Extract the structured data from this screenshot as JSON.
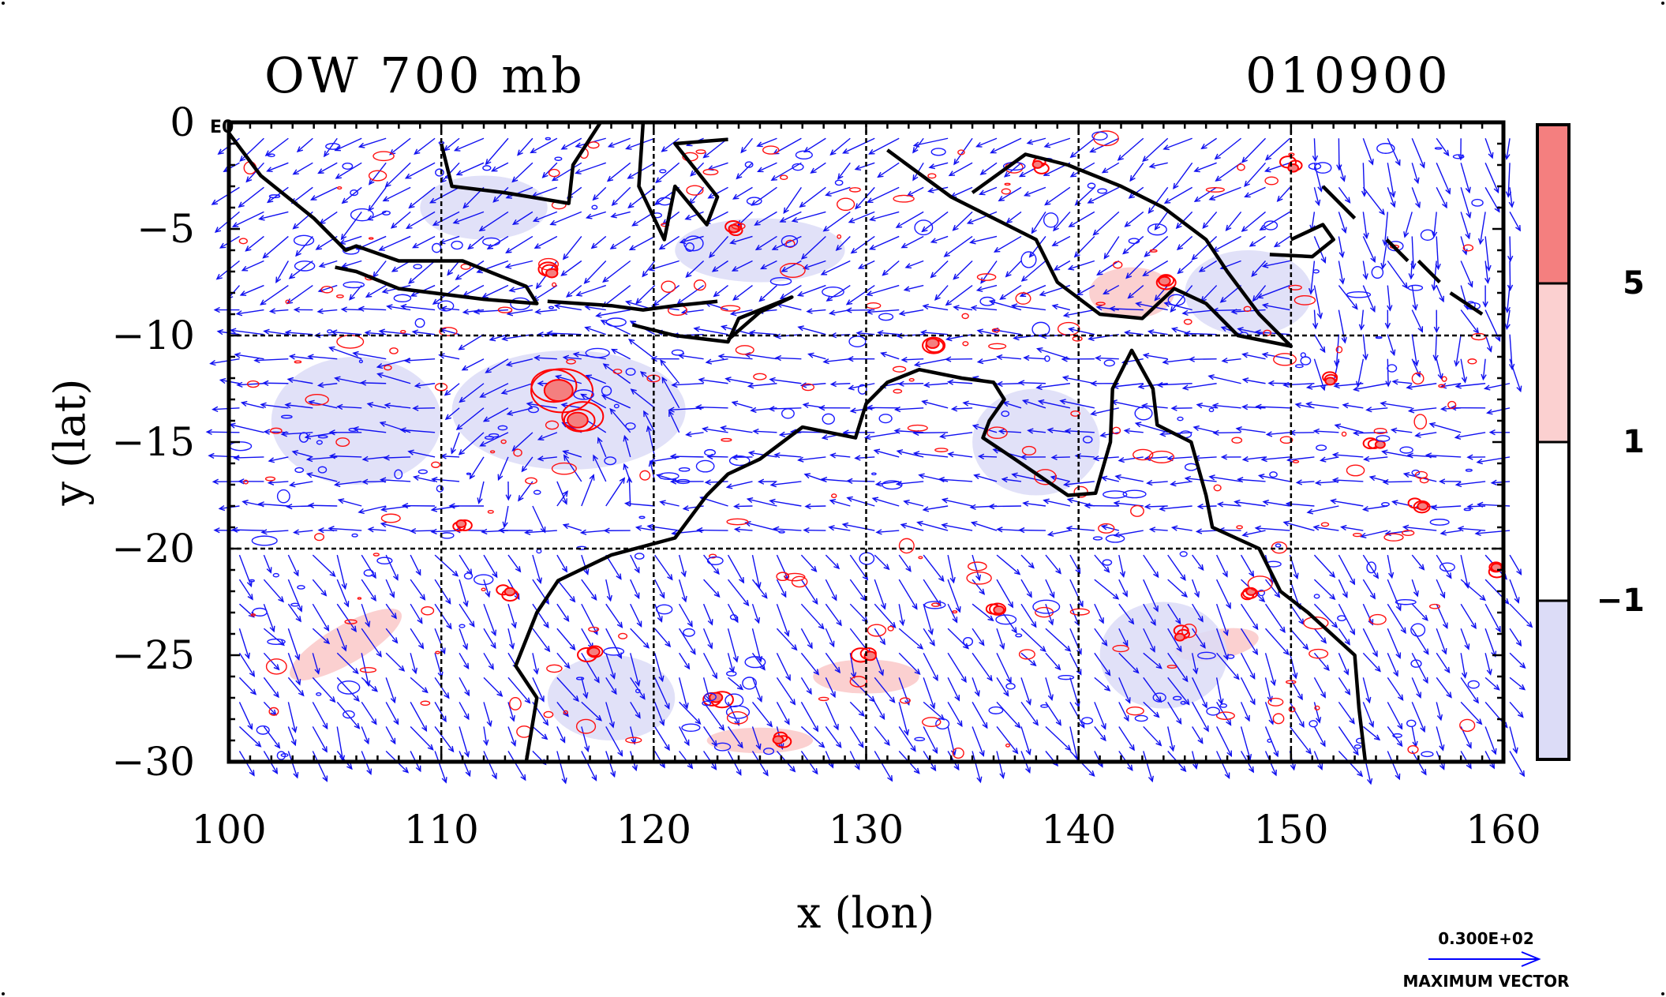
{
  "title_left": "OW 700 mb",
  "title_right": "010900",
  "corner_label": "E0",
  "x_axis": {
    "label": "x (lon)",
    "range": [
      100,
      160
    ],
    "ticks": [
      "100",
      "110",
      "120",
      "130",
      "140",
      "150",
      "160"
    ]
  },
  "y_axis": {
    "label": "y (lat)",
    "range": [
      -30,
      0
    ],
    "ticks": [
      "0",
      "−5",
      "−10",
      "−15",
      "−20",
      "−25",
      "−30"
    ]
  },
  "colorbar": {
    "levels": [
      "5",
      "1",
      "−1"
    ],
    "colors": [
      "#f47f7f",
      "#fbd0d0",
      "#ffffff",
      "#dcdcf7"
    ]
  },
  "vector_legend": {
    "value": "0.300E+02",
    "caption": "MAXIMUM VECTOR",
    "color": "#0000ff"
  },
  "colors": {
    "contour_positive": "#ff0000",
    "contour_negative": "#0000ff",
    "coastline": "#000000"
  }
}
